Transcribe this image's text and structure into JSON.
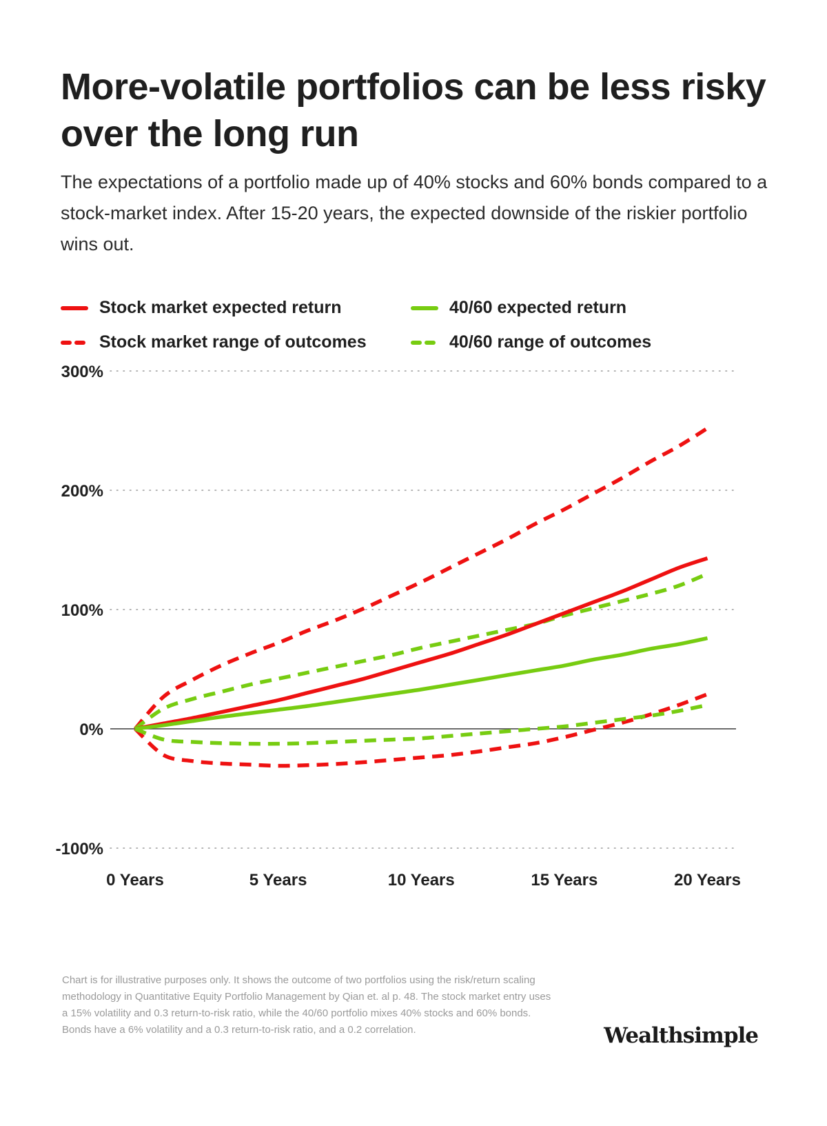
{
  "title": "More-volatile portfolios can be less risky over the long run",
  "subtitle": "The expectations of a portfolio made up of 40% stocks and 60% bonds compared to a stock-market index. After 15-20 years, the expected downside of the riskier portfolio wins out.",
  "footnote": "Chart is for illustrative purposes only. It shows the outcome of two portfolios using the risk/return scaling methodology in Quantitative Equity Portfolio Management by Qian et. al p. 48. The stock market entry uses a 15% volatility and 0.3 return-to-risk ratio, while the 40/60 portfolio mixes 40% stocks and 60% bonds. Bonds have a 6% volatility and a 0.3 return-to-risk ratio, and a 0.2 correlation.",
  "brand": "Wealthsimple",
  "colors": {
    "stock": "#ee1111",
    "balanced": "#77cc11",
    "grid": "#9a9a9a",
    "zero_line": "#3a3a3a",
    "text": "#1f1f1f"
  },
  "legend": [
    {
      "label": "Stock market expected return",
      "color": "#ee1111",
      "style": "solid"
    },
    {
      "label": "40/60 expected return",
      "color": "#77cc11",
      "style": "solid"
    },
    {
      "label": "Stock market range of outcomes",
      "color": "#ee1111",
      "style": "dashed"
    },
    {
      "label": "40/60 range of outcomes",
      "color": "#77cc11",
      "style": "dashed"
    }
  ],
  "chart_data": {
    "type": "line",
    "x": [
      0,
      1,
      2,
      3,
      4,
      5,
      6,
      7,
      8,
      9,
      10,
      11,
      12,
      13,
      14,
      15,
      16,
      17,
      18,
      19,
      20
    ],
    "x_tick_values": [
      0,
      5,
      10,
      15,
      20
    ],
    "x_tick_labels": [
      "0 Years",
      "5 Years",
      "10 Years",
      "15 Years",
      "20 Years"
    ],
    "y_tick_values": [
      -100,
      0,
      100,
      200,
      300
    ],
    "y_tick_labels": [
      "-100%",
      "0%",
      "100%",
      "200%",
      "300%"
    ],
    "xlim": [
      0,
      21
    ],
    "ylim": [
      -100,
      300
    ],
    "grid": "horizontal-dotted",
    "legend_position": "top",
    "series": [
      {
        "label": "Stock market range of outcomes",
        "color": "#ee1111",
        "style": "dashed",
        "values": [
          0,
          27,
          41,
          53,
          63,
          72,
          82,
          91,
          101,
          112,
          123,
          135,
          147,
          159,
          172,
          184,
          197,
          210,
          224,
          237,
          252
        ]
      },
      {
        "label": "Stock market range of outcomes",
        "color": "#ee1111",
        "style": "dashed",
        "values": [
          0,
          -22,
          -27,
          -29,
          -30,
          -31,
          -30.5,
          -29.5,
          -28,
          -26,
          -24,
          -22,
          -19,
          -15.5,
          -12,
          -7,
          -1,
          5,
          12,
          20,
          29
        ]
      },
      {
        "label": "40/60 range of outcomes",
        "color": "#77cc11",
        "style": "dashed",
        "values": [
          0,
          17,
          25,
          31,
          37,
          42,
          47,
          52,
          57,
          62,
          68,
          73,
          78,
          83,
          88,
          95,
          101,
          107,
          113,
          120,
          130
        ]
      },
      {
        "label": "40/60 range of outcomes",
        "color": "#77cc11",
        "style": "dashed",
        "values": [
          0,
          -9,
          -11,
          -12,
          -12.5,
          -12.5,
          -12,
          -11,
          -10,
          -9,
          -8,
          -6,
          -4,
          -2,
          0,
          2,
          5,
          8,
          11,
          15,
          20
        ]
      },
      {
        "label": "Stock market expected return",
        "color": "#ee1111",
        "style": "solid",
        "values": [
          0,
          4.5,
          9,
          14,
          19,
          24,
          30,
          36,
          42,
          49,
          56,
          63,
          71,
          79,
          88,
          97,
          106,
          115,
          125,
          135,
          143
        ]
      },
      {
        "label": "40/60 expected return",
        "color": "#77cc11",
        "style": "solid",
        "values": [
          0,
          3,
          6.5,
          10,
          13,
          16,
          19,
          22.5,
          26,
          29.5,
          33,
          37,
          41,
          45,
          49,
          53,
          58,
          62,
          67,
          71,
          76
        ]
      }
    ]
  }
}
